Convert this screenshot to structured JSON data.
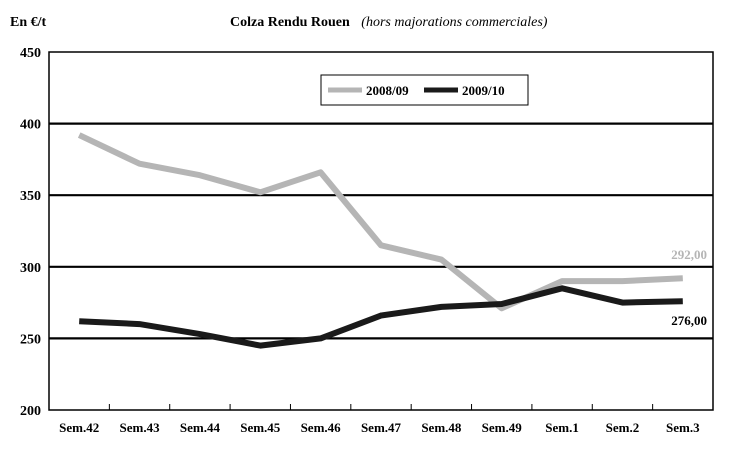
{
  "chart_data": {
    "type": "line",
    "unit_label": "En €/t",
    "title": "Colza Rendu Rouen",
    "subtitle": "(hors majorations commerciales)",
    "categories": [
      "Sem.42",
      "Sem.43",
      "Sem.44",
      "Sem.45",
      "Sem.46",
      "Sem.47",
      "Sem.48",
      "Sem.49",
      "Sem.1",
      "Sem.2",
      "Sem.3"
    ],
    "ylim": [
      200,
      450
    ],
    "yticks": [
      200,
      250,
      300,
      350,
      400,
      450
    ],
    "grid": true,
    "legend_position": "top-center",
    "series": [
      {
        "name": "2008/09",
        "color": "#b5b5b5",
        "values": [
          392,
          372,
          364,
          352,
          366,
          315,
          305,
          271,
          290,
          290,
          292
        ],
        "end_label": "292,00"
      },
      {
        "name": "2009/10",
        "color": "#1a1a1a",
        "values": [
          262,
          260,
          253,
          245,
          250,
          266,
          272,
          274,
          285,
          275,
          276
        ],
        "end_label": "276,00"
      }
    ]
  }
}
